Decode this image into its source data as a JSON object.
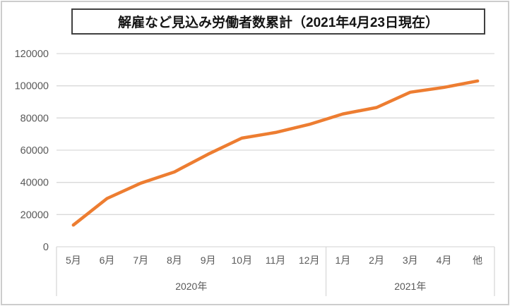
{
  "title": "解雇など見込み労働者数累計（2021年4月23日現在）",
  "chart_data": {
    "type": "line",
    "title": "解雇など見込み労働者数累計（2021年4月23日現在）",
    "categories": [
      "5月",
      "6月",
      "7月",
      "8月",
      "9月",
      "10月",
      "11月",
      "12月",
      "1月",
      "2月",
      "3月",
      "4月",
      "他"
    ],
    "values": [
      13500,
      30000,
      39500,
      46500,
      57500,
      67500,
      71000,
      76000,
      82500,
      86500,
      96000,
      99000,
      103000
    ],
    "year_groups": [
      {
        "label": "2020年",
        "count": 8
      },
      {
        "label": "2021年",
        "count": 5
      }
    ],
    "yticks": [
      0,
      20000,
      40000,
      60000,
      80000,
      100000,
      120000
    ],
    "ylim": [
      0,
      120000
    ],
    "xlabel": "",
    "ylabel": "",
    "grid": true,
    "legend": "none",
    "line_color": "#ED7D31",
    "grid_color": "#D9D9D9",
    "axis_text_color": "#595959",
    "title_border_color": "#404040",
    "chart_border_color": "#CDCDCD"
  }
}
